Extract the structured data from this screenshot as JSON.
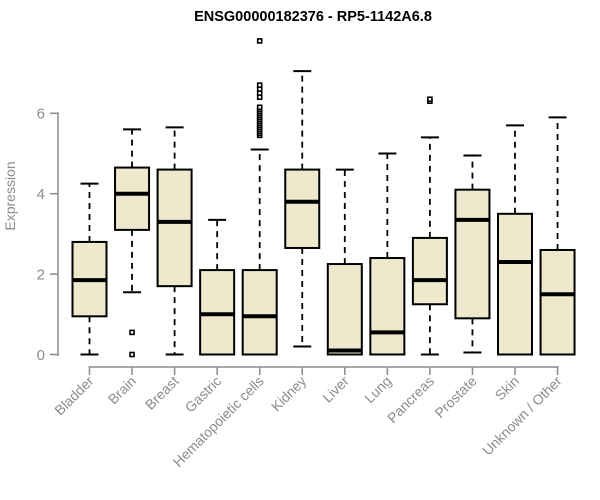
{
  "page": {
    "background": "#FFFFFF"
  },
  "chart_data": {
    "type": "boxplot",
    "title": "ENSG00000182376 - RP5-1142A6.8",
    "ylabel": "Expression",
    "xlabel": "",
    "ylim": [
      0,
      6
    ],
    "yticks": [
      0,
      2,
      4,
      6
    ],
    "grid": false,
    "legend": null,
    "box_fill": "#EEE8CD",
    "box_border": "#000000",
    "median_color": "#000000",
    "axis_color": "#8C8C8C",
    "title_color": "#000000",
    "categories": [
      "Bladder",
      "Brain",
      "Breast",
      "Gastric",
      "Hematopoietic cells",
      "Kidney",
      "Liver",
      "Lung",
      "Pancreas",
      "Prostate",
      "Skin",
      "Unknown / Other"
    ],
    "series": [
      {
        "name": "Bladder",
        "low": 0.0,
        "q1": 0.95,
        "median": 1.85,
        "q3": 2.8,
        "high": 4.25,
        "outliers": []
      },
      {
        "name": "Brain",
        "low": 1.55,
        "q1": 3.1,
        "median": 4.0,
        "q3": 4.65,
        "high": 5.6,
        "outliers": [
          0.55,
          0.0
        ]
      },
      {
        "name": "Breast",
        "low": 0.0,
        "q1": 1.7,
        "median": 3.3,
        "q3": 4.6,
        "high": 5.65,
        "outliers": []
      },
      {
        "name": "Gastric",
        "low": 0.0,
        "q1": 0.0,
        "median": 1.0,
        "q3": 2.1,
        "high": 3.35,
        "outliers": []
      },
      {
        "name": "Hematopoietic cells",
        "low": 0.0,
        "q1": 0.0,
        "median": 0.95,
        "q3": 2.1,
        "high": 5.1,
        "outliers": [
          5.45,
          5.5,
          5.55,
          5.6,
          5.65,
          5.7,
          5.75,
          5.8,
          5.85,
          5.9,
          5.95,
          6.0,
          6.05,
          6.1,
          6.15,
          6.4,
          6.5,
          6.6,
          6.7,
          7.8
        ]
      },
      {
        "name": "Kidney",
        "low": 0.2,
        "q1": 2.65,
        "median": 3.8,
        "q3": 4.6,
        "high": 7.05,
        "outliers": []
      },
      {
        "name": "Liver",
        "low": 0.0,
        "q1": 0.0,
        "median": 0.1,
        "q3": 2.25,
        "high": 4.6,
        "outliers": []
      },
      {
        "name": "Lung",
        "low": 0.0,
        "q1": 0.0,
        "median": 0.55,
        "q3": 2.4,
        "high": 5.0,
        "outliers": []
      },
      {
        "name": "Pancreas",
        "low": 0.0,
        "q1": 1.25,
        "median": 1.85,
        "q3": 2.9,
        "high": 5.4,
        "outliers": [
          6.3,
          6.35
        ]
      },
      {
        "name": "Prostate",
        "low": 0.05,
        "q1": 0.9,
        "median": 3.35,
        "q3": 4.1,
        "high": 4.95,
        "outliers": []
      },
      {
        "name": "Skin",
        "low": 0.0,
        "q1": 0.0,
        "median": 2.3,
        "q3": 3.5,
        "high": 5.7,
        "outliers": []
      },
      {
        "name": "Unknown / Other",
        "low": 0.0,
        "q1": 0.0,
        "median": 1.5,
        "q3": 2.6,
        "high": 5.9,
        "outliers": []
      }
    ]
  }
}
